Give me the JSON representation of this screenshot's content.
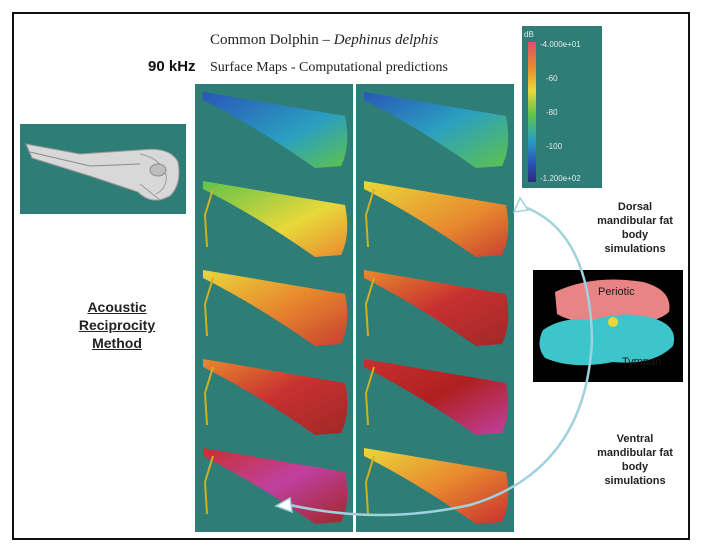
{
  "title": {
    "common_name": "Common Dolphin – ",
    "species": "Dephinus delphis"
  },
  "frequency_label": "90 kHz",
  "subtitle": "Surface Maps - Computational predictions",
  "method_label": [
    "Acoustic",
    "Reciprocity",
    "Method"
  ],
  "colorbar": {
    "unit": "dB",
    "labels": [
      "-4.000e+01",
      "-60",
      "-80",
      "-100",
      "-1.200e+02"
    ],
    "colors": [
      "#e0506a",
      "#e88a2e",
      "#e8d83a",
      "#5ec24a",
      "#2aa0c0",
      "#2a55b8",
      "#2a2a7a"
    ]
  },
  "dorsal_label": [
    "Dorsal",
    "mandibular fat",
    "body",
    "simulations"
  ],
  "ventral_label": [
    "Ventral",
    "mandibular fat",
    "body",
    "simulations"
  ],
  "ear_labels": {
    "periotic": "Periotic",
    "tympan": "Tympan"
  },
  "colors": {
    "panel_bg": "#2f7d77",
    "arrow": "#9fd2dc",
    "skull": "#d8d8d8",
    "periotic": "#e88484",
    "tympan": "#3cc6cc"
  }
}
